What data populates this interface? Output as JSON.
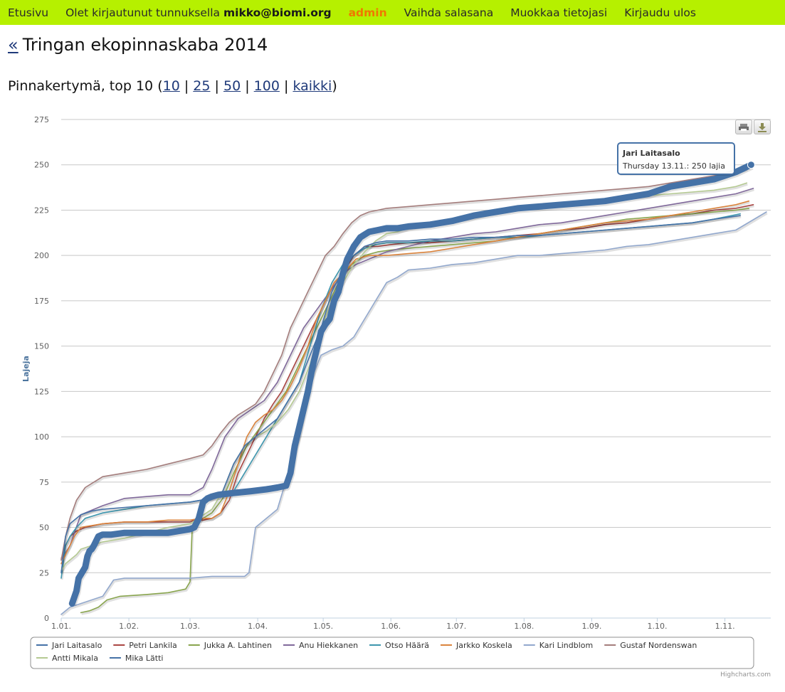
{
  "nav": {
    "home": "Etusivu",
    "logged_prefix": "Olet kirjautunut tunnuksella",
    "user": "mikko@biomi.org",
    "admin": "admin",
    "change_password": "Vaihda salasana",
    "edit_info": "Muokkaa tietojasi",
    "logout": "Kirjaudu ulos"
  },
  "page": {
    "back": "«",
    "title": "Tringan ekopinnaskaba 2014",
    "subtitle_prefix": "Pinnakertymä, top 10 (",
    "subtitle_suffix": ")",
    "top_links": [
      "10",
      "25",
      "50",
      "100",
      "kaikki"
    ],
    "separator": "|"
  },
  "tooltip": {
    "series": "Jari Laitasalo",
    "text": "Thursday 13.11.: 250 lajia"
  },
  "credits": "Highcharts.com",
  "chart_data": {
    "type": "line",
    "title": "",
    "xlabel": "",
    "ylabel": "Lajeja",
    "x_unit": "date (2014)",
    "ylim": [
      0,
      275
    ],
    "yticks": [
      0,
      25,
      50,
      75,
      100,
      125,
      150,
      175,
      200,
      225,
      250,
      275
    ],
    "xticks": [
      "1.01.",
      "1.02.",
      "1.03.",
      "1.04.",
      "1.05.",
      "1.06.",
      "1.07.",
      "1.08.",
      "1.09.",
      "1.10.",
      "1.11."
    ],
    "xtick_days": [
      1,
      32,
      60,
      91,
      121,
      152,
      182,
      213,
      244,
      274,
      305
    ],
    "xlim_days": [
      1,
      326
    ],
    "grid": true,
    "legend": "bottom",
    "series": [
      {
        "name": "Jari Laitasalo",
        "color": "#4572a7",
        "highlight": true,
        "x": [
          6,
          8,
          9,
          10,
          12,
          13,
          14,
          15,
          16,
          18,
          20,
          24,
          30,
          40,
          50,
          55,
          60,
          62,
          64,
          66,
          68,
          70,
          73,
          80,
          88,
          95,
          100,
          104,
          106,
          108,
          110,
          112,
          114,
          116,
          118,
          120,
          122,
          124,
          126,
          128,
          130,
          132,
          135,
          138,
          142,
          146,
          150,
          155,
          160,
          170,
          180,
          190,
          200,
          210,
          220,
          230,
          240,
          250,
          260,
          270,
          280,
          290,
          300,
          305,
          310,
          317
        ],
        "y": [
          8,
          15,
          22,
          24,
          28,
          34,
          37,
          38,
          40,
          45,
          46,
          46,
          47,
          47,
          47,
          48,
          49,
          50,
          55,
          64,
          66,
          67,
          68,
          69,
          70,
          71,
          72,
          73,
          80,
          95,
          105,
          115,
          125,
          138,
          148,
          158,
          162,
          165,
          175,
          180,
          190,
          198,
          205,
          210,
          213,
          214,
          215,
          215,
          216,
          217,
          219,
          222,
          224,
          226,
          227,
          228,
          229,
          230,
          232,
          234,
          238,
          240,
          242,
          244,
          246,
          250
        ]
      },
      {
        "name": "Petri Lankila",
        "color": "#aa4643",
        "x": [
          1,
          3,
          5,
          8,
          12,
          20,
          30,
          40,
          50,
          60,
          62,
          66,
          70,
          74,
          78,
          82,
          86,
          90,
          94,
          98,
          102,
          106,
          110,
          114,
          118,
          122,
          126,
          130,
          135,
          140,
          146,
          152,
          160,
          170,
          180,
          190,
          200,
          210,
          220,
          230,
          240,
          250,
          260,
          270,
          280,
          290,
          300,
          310,
          318
        ],
        "y": [
          32,
          40,
          45,
          48,
          50,
          52,
          53,
          53,
          53,
          53,
          54,
          54,
          55,
          58,
          65,
          80,
          90,
          100,
          110,
          118,
          125,
          135,
          145,
          155,
          165,
          175,
          185,
          190,
          200,
          205,
          205,
          206,
          207,
          207,
          208,
          209,
          210,
          211,
          212,
          214,
          215,
          217,
          218,
          220,
          222,
          223,
          225,
          226,
          228
        ]
      },
      {
        "name": "Jukka A. Lahtinen",
        "color": "#89a54e",
        "x": [
          10,
          14,
          18,
          22,
          28,
          40,
          50,
          58,
          60,
          61,
          62,
          66,
          70,
          75,
          80,
          86,
          92,
          98,
          104,
          110,
          116,
          122,
          128,
          134,
          140,
          146,
          152,
          160,
          170,
          180,
          190,
          200,
          210,
          220,
          230,
          240,
          250,
          260,
          270,
          280,
          290,
          300,
          310,
          316
        ],
        "y": [
          3,
          4,
          6,
          10,
          12,
          13,
          14,
          16,
          20,
          50,
          52,
          55,
          58,
          66,
          80,
          95,
          105,
          115,
          125,
          140,
          155,
          170,
          185,
          195,
          200,
          202,
          203,
          204,
          205,
          206,
          207,
          208,
          210,
          212,
          214,
          216,
          218,
          220,
          221,
          222,
          223,
          224,
          225,
          226
        ]
      },
      {
        "name": "Anu Hiekkanen",
        "color": "#80699b",
        "x": [
          1,
          3,
          5,
          7,
          10,
          20,
          30,
          40,
          50,
          60,
          66,
          70,
          76,
          82,
          88,
          94,
          100,
          106,
          112,
          118,
          124,
          130,
          136,
          142,
          150,
          160,
          170,
          180,
          190,
          200,
          210,
          220,
          230,
          240,
          250,
          260,
          270,
          280,
          290,
          300,
          310,
          318
        ],
        "y": [
          33,
          36,
          40,
          47,
          57,
          62,
          66,
          67,
          68,
          68,
          72,
          82,
          100,
          110,
          115,
          120,
          130,
          145,
          160,
          170,
          180,
          190,
          195,
          198,
          202,
          205,
          208,
          210,
          212,
          213,
          215,
          217,
          218,
          220,
          222,
          224,
          226,
          228,
          230,
          232,
          234,
          237
        ]
      },
      {
        "name": "Otso Häärä",
        "color": "#3d96ae",
        "x": [
          1,
          3,
          5,
          8,
          12,
          20,
          30,
          40,
          50,
          60,
          65,
          70,
          75,
          80,
          85,
          90,
          95,
          100,
          105,
          110,
          115,
          120,
          125,
          130,
          135,
          140,
          145,
          150,
          160,
          170,
          180,
          190,
          200,
          210,
          220,
          230,
          240,
          250,
          260,
          270,
          280,
          290,
          300,
          312
        ],
        "y": [
          22,
          40,
          45,
          50,
          55,
          58,
          60,
          62,
          63,
          64,
          65,
          66,
          67,
          70,
          80,
          90,
          100,
          110,
          120,
          130,
          150,
          170,
          185,
          195,
          200,
          204,
          206,
          207,
          207,
          208,
          208,
          209,
          210,
          210,
          211,
          212,
          213,
          214,
          215,
          216,
          217,
          218,
          220,
          223
        ]
      },
      {
        "name": "Jarkko Koskela",
        "color": "#db843d",
        "x": [
          1,
          3,
          5,
          7,
          10,
          20,
          30,
          40,
          50,
          60,
          65,
          70,
          74,
          78,
          82,
          86,
          90,
          94,
          98,
          102,
          106,
          110,
          114,
          118,
          122,
          126,
          130,
          136,
          142,
          150,
          160,
          170,
          180,
          190,
          200,
          210,
          220,
          230,
          240,
          250,
          260,
          270,
          280,
          290,
          300,
          310,
          316
        ],
        "y": [
          30,
          35,
          40,
          45,
          50,
          52,
          53,
          53,
          54,
          54,
          55,
          55,
          58,
          70,
          85,
          100,
          108,
          112,
          115,
          120,
          128,
          138,
          150,
          165,
          175,
          185,
          190,
          198,
          200,
          200,
          201,
          202,
          204,
          206,
          208,
          210,
          212,
          214,
          216,
          218,
          219,
          220,
          222,
          224,
          226,
          228,
          230
        ]
      },
      {
        "name": "Kari Lindblom",
        "color": "#92a8cd",
        "x": [
          1,
          5,
          10,
          15,
          20,
          25,
          30,
          40,
          50,
          60,
          70,
          80,
          85,
          87,
          90,
          95,
          100,
          105,
          110,
          115,
          120,
          125,
          130,
          135,
          140,
          145,
          150,
          155,
          160,
          170,
          180,
          190,
          200,
          210,
          220,
          230,
          240,
          250,
          260,
          270,
          280,
          290,
          300,
          310,
          324
        ],
        "y": [
          2,
          6,
          8,
          10,
          12,
          21,
          22,
          22,
          22,
          22,
          23,
          23,
          23,
          25,
          50,
          55,
          60,
          80,
          100,
          130,
          145,
          148,
          150,
          155,
          165,
          175,
          185,
          188,
          192,
          193,
          195,
          196,
          198,
          200,
          200,
          201,
          202,
          203,
          205,
          206,
          208,
          210,
          212,
          214,
          224
        ]
      },
      {
        "name": "Gustaf Nordenswan",
        "color": "#a47d7c",
        "x": [
          1,
          3,
          5,
          8,
          12,
          20,
          30,
          40,
          50,
          60,
          66,
          70,
          74,
          78,
          82,
          86,
          90,
          94,
          98,
          102,
          106,
          110,
          114,
          118,
          122,
          126,
          130,
          134,
          138,
          142,
          146,
          150,
          160,
          170,
          180,
          190,
          200,
          210,
          220,
          230,
          240,
          250,
          260,
          270,
          280,
          290,
          300,
          310,
          315
        ],
        "y": [
          32,
          45,
          55,
          65,
          72,
          78,
          80,
          82,
          85,
          88,
          90,
          95,
          102,
          108,
          112,
          115,
          118,
          125,
          135,
          145,
          160,
          170,
          180,
          190,
          200,
          205,
          212,
          218,
          222,
          224,
          225,
          226,
          227,
          228,
          229,
          230,
          231,
          232,
          233,
          234,
          235,
          236,
          237,
          238,
          240,
          242,
          244,
          246,
          248
        ]
      },
      {
        "name": "Antti Mikala",
        "color": "#b5ca92",
        "x": [
          1,
          3,
          5,
          8,
          10,
          15,
          20,
          30,
          40,
          50,
          60,
          65,
          70,
          75,
          80,
          85,
          90,
          95,
          100,
          105,
          110,
          115,
          120,
          125,
          130,
          135,
          140,
          145,
          150,
          155,
          160,
          170,
          180,
          190,
          200,
          210,
          220,
          230,
          240,
          250,
          260,
          270,
          280,
          290,
          300,
          310,
          315
        ],
        "y": [
          26,
          30,
          32,
          35,
          38,
          40,
          42,
          44,
          47,
          50,
          52,
          56,
          60,
          70,
          85,
          95,
          100,
          103,
          108,
          115,
          125,
          140,
          160,
          175,
          185,
          195,
          202,
          208,
          212,
          213,
          215,
          217,
          219,
          221,
          224,
          226,
          228,
          229,
          230,
          231,
          232,
          233,
          234,
          235,
          236,
          238,
          240
        ]
      },
      {
        "name": "Mika Lätti",
        "color": "#4572a7",
        "x": [
          1,
          3,
          5,
          8,
          10,
          15,
          20,
          30,
          40,
          50,
          60,
          65,
          70,
          75,
          80,
          85,
          90,
          95,
          100,
          105,
          110,
          115,
          120,
          125,
          130,
          135,
          140,
          145,
          150,
          160,
          170,
          180,
          190,
          200,
          210,
          220,
          230,
          240,
          250,
          260,
          270,
          280,
          290,
          300,
          312
        ],
        "y": [
          25,
          45,
          52,
          55,
          57,
          59,
          60,
          61,
          62,
          63,
          64,
          65,
          66,
          70,
          85,
          95,
          100,
          105,
          110,
          120,
          130,
          145,
          160,
          180,
          192,
          200,
          205,
          207,
          208,
          208,
          209,
          209,
          210,
          210,
          211,
          211,
          212,
          213,
          214,
          215,
          216,
          217,
          218,
          220,
          222
        ]
      }
    ]
  }
}
